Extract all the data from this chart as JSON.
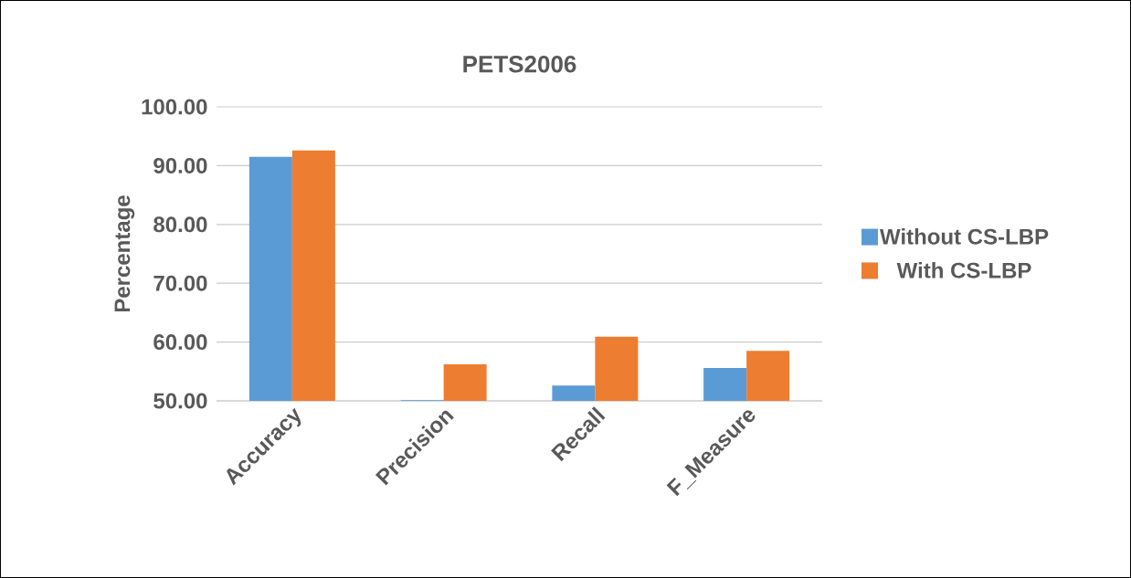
{
  "chart_data": {
    "type": "bar",
    "title": "PETS2006",
    "ylabel": "Percentage",
    "categories": [
      "Accuracy",
      "Precision",
      "Recall",
      "F_Measure"
    ],
    "series": [
      {
        "name": "Without CS-LBP",
        "color": "#5b9bd5",
        "values": [
          91.5,
          50.1,
          52.6,
          55.6
        ]
      },
      {
        "name": "With CS-LBP",
        "color": "#ed7d31",
        "values": [
          92.6,
          56.2,
          60.9,
          58.5
        ]
      }
    ],
    "ylim": [
      50,
      100
    ],
    "yticks": [
      {
        "value": 50,
        "label": "50.00"
      },
      {
        "value": 60,
        "label": "60.00"
      },
      {
        "value": 70,
        "label": "70.00"
      },
      {
        "value": 80,
        "label": "80.00"
      },
      {
        "value": 90,
        "label": "90.00"
      },
      {
        "value": 100,
        "label": "100.00"
      }
    ],
    "grid": "y",
    "legend": "right"
  }
}
